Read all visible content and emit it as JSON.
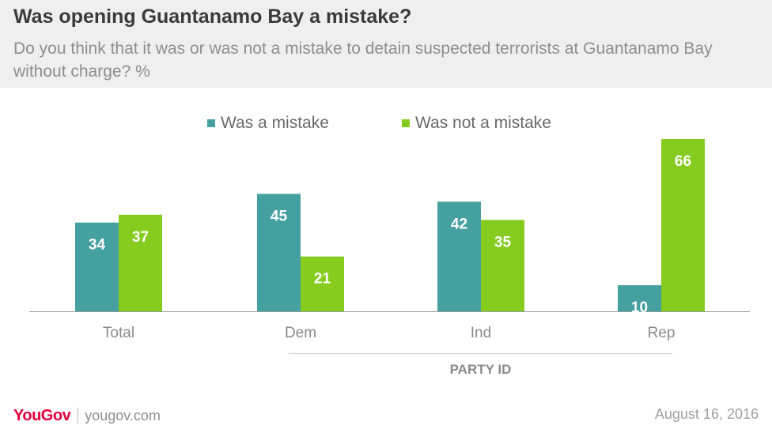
{
  "header": {
    "title": "Was opening Guantanamo Bay a mistake?",
    "subtitle": "Do you think that it was or was not a mistake to detain suspected terrorists at Guantanamo Bay without charge? %"
  },
  "legend": [
    {
      "label": "Was a mistake",
      "color": "#45a0a0"
    },
    {
      "label": "Was not a mistake",
      "color": "#85cc1e"
    }
  ],
  "group_label": "PARTY ID",
  "footer": {
    "logo": "YouGov",
    "url": "yougov.com",
    "date": "August 16, 2016"
  },
  "chart_data": {
    "type": "bar",
    "categories": [
      "Total",
      "Dem",
      "Ind",
      "Rep"
    ],
    "series": [
      {
        "name": "Was a mistake",
        "values": [
          34,
          45,
          42,
          10
        ],
        "color": "#45a0a0"
      },
      {
        "name": "Was not a mistake",
        "values": [
          37,
          21,
          35,
          66
        ],
        "color": "#85cc1e"
      }
    ],
    "ylim": [
      0,
      66
    ]
  }
}
